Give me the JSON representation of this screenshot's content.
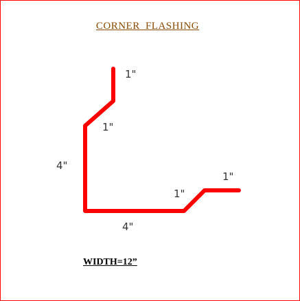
{
  "title": "CORNER  FLASHING",
  "width_label": "WIDTH=12”",
  "dimensions": {
    "top_flange": "1\"",
    "upper_bevel": "1\"",
    "vertical_leg": "4\"",
    "horizontal_leg": "4\"",
    "lower_bevel": "1\"",
    "end_flange": "1\""
  },
  "colors": {
    "flashing_line": "#ff0000",
    "frame_border": "#ff0000",
    "title_text": "#8a4a00"
  }
}
